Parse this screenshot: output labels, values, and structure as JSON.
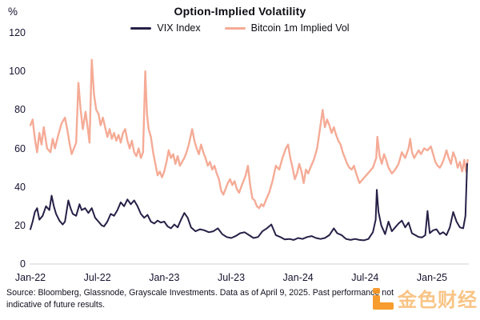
{
  "title": "Option-Implied Volatility",
  "y_axis_unit": "%",
  "legend": [
    {
      "label": "VIX Index",
      "color": "#272047"
    },
    {
      "label": "Bitcoin 1m Implied Vol",
      "color": "#f5ab96"
    }
  ],
  "source": "Source: Bloomberg, Glassnode, Grayscale Investments. Data as of April 9, 2025. Past performance not indicative of future results.",
  "watermark": {
    "text": "金色财经",
    "color": "#f7941d"
  },
  "chart_data": {
    "type": "line",
    "title": "Option-Implied Volatility",
    "x_unit": "months since Jan-2022",
    "y_unit": "percent",
    "ylim": [
      0,
      120
    ],
    "grid": false,
    "legend_position": "top-center",
    "axis_line_color": "#dcdcdc",
    "y_ticks": [
      0,
      20,
      40,
      60,
      80,
      100,
      120
    ],
    "x_ticks": [
      {
        "label": "Jan-22",
        "m": 0
      },
      {
        "label": "Jul-22",
        "m": 6
      },
      {
        "label": "Jan-23",
        "m": 12
      },
      {
        "label": "Jul-23",
        "m": 18
      },
      {
        "label": "Jan-24",
        "m": 24
      },
      {
        "label": "Jul-24",
        "m": 30
      },
      {
        "label": "Jan-25",
        "m": 36
      }
    ],
    "series": [
      {
        "name": "Bitcoin 1m Implied Vol",
        "color": "#f5ab96",
        "stroke_width": 2.4,
        "points": [
          [
            0,
            72
          ],
          [
            0.2,
            75
          ],
          [
            0.4,
            65
          ],
          [
            0.6,
            58
          ],
          [
            0.8,
            68
          ],
          [
            1,
            62
          ],
          [
            1.2,
            71
          ],
          [
            1.5,
            60
          ],
          [
            1.8,
            58
          ],
          [
            2,
            65
          ],
          [
            2.2,
            60
          ],
          [
            2.5,
            67
          ],
          [
            2.8,
            73
          ],
          [
            3.1,
            76
          ],
          [
            3.3,
            70
          ],
          [
            3.5,
            63
          ],
          [
            3.7,
            57
          ],
          [
            3.9,
            60
          ],
          [
            4.1,
            63
          ],
          [
            4.3,
            94
          ],
          [
            4.5,
            80
          ],
          [
            4.7,
            70
          ],
          [
            4.95,
            79
          ],
          [
            5.15,
            70
          ],
          [
            5.3,
            63
          ],
          [
            5.5,
            106
          ],
          [
            5.7,
            88
          ],
          [
            5.9,
            80
          ],
          [
            6.1,
            78
          ],
          [
            6.3,
            72
          ],
          [
            6.5,
            76
          ],
          [
            6.7,
            71
          ],
          [
            6.9,
            66
          ],
          [
            7.1,
            70
          ],
          [
            7.3,
            65
          ],
          [
            7.5,
            68
          ],
          [
            7.7,
            64
          ],
          [
            7.9,
            67
          ],
          [
            8.1,
            63
          ],
          [
            8.3,
            68
          ],
          [
            8.5,
            70
          ],
          [
            8.7,
            64
          ],
          [
            8.9,
            60
          ],
          [
            9.1,
            64
          ],
          [
            9.3,
            58
          ],
          [
            9.5,
            56
          ],
          [
            9.7,
            60
          ],
          [
            9.9,
            55
          ],
          [
            10.1,
            58
          ],
          [
            10.3,
            100
          ],
          [
            10.45,
            78
          ],
          [
            10.6,
            70
          ],
          [
            10.8,
            66
          ],
          [
            11,
            58
          ],
          [
            11.2,
            52
          ],
          [
            11.4,
            46
          ],
          [
            11.6,
            48
          ],
          [
            11.8,
            45
          ],
          [
            12,
            48
          ],
          [
            12.2,
            53
          ],
          [
            12.4,
            59
          ],
          [
            12.6,
            55
          ],
          [
            12.8,
            57
          ],
          [
            13,
            52
          ],
          [
            13.2,
            56
          ],
          [
            13.4,
            51
          ],
          [
            13.6,
            53
          ],
          [
            13.8,
            55
          ],
          [
            14,
            58
          ],
          [
            14.2,
            62
          ],
          [
            14.5,
            70
          ],
          [
            14.7,
            64
          ],
          [
            14.9,
            60
          ],
          [
            15.1,
            57
          ],
          [
            15.3,
            62
          ],
          [
            15.5,
            58
          ],
          [
            15.7,
            55
          ],
          [
            15.9,
            51
          ],
          [
            16.1,
            53
          ],
          [
            16.3,
            49
          ],
          [
            16.5,
            51
          ],
          [
            16.7,
            47
          ],
          [
            16.9,
            44
          ],
          [
            17.1,
            38
          ],
          [
            17.3,
            36
          ],
          [
            17.5,
            39
          ],
          [
            17.7,
            42
          ],
          [
            17.9,
            44
          ],
          [
            18.1,
            41
          ],
          [
            18.3,
            43
          ],
          [
            18.5,
            39
          ],
          [
            18.7,
            37
          ],
          [
            18.9,
            40
          ],
          [
            19.1,
            43
          ],
          [
            19.3,
            46
          ],
          [
            19.5,
            51
          ],
          [
            19.7,
            41
          ],
          [
            19.9,
            34
          ],
          [
            20.1,
            33
          ],
          [
            20.3,
            30
          ],
          [
            20.5,
            29
          ],
          [
            20.7,
            31
          ],
          [
            20.9,
            30
          ],
          [
            21.1,
            33
          ],
          [
            21.4,
            37
          ],
          [
            21.7,
            43
          ],
          [
            22,
            51
          ],
          [
            22.3,
            49
          ],
          [
            22.6,
            55
          ],
          [
            22.9,
            60
          ],
          [
            23.1,
            62
          ],
          [
            23.3,
            55
          ],
          [
            23.5,
            50
          ],
          [
            23.7,
            44
          ],
          [
            23.9,
            47
          ],
          [
            24.1,
            52
          ],
          [
            24.3,
            48
          ],
          [
            24.5,
            42
          ],
          [
            24.7,
            49
          ],
          [
            24.9,
            47
          ],
          [
            25.1,
            50
          ],
          [
            25.4,
            54
          ],
          [
            25.7,
            60
          ],
          [
            26,
            72
          ],
          [
            26.2,
            80
          ],
          [
            26.4,
            71
          ],
          [
            26.6,
            75
          ],
          [
            26.8,
            72
          ],
          [
            27,
            68
          ],
          [
            27.2,
            71
          ],
          [
            27.4,
            67
          ],
          [
            27.6,
            64
          ],
          [
            27.8,
            62
          ],
          [
            28,
            58
          ],
          [
            28.2,
            55
          ],
          [
            28.4,
            52
          ],
          [
            28.6,
            50
          ],
          [
            28.8,
            49
          ],
          [
            29,
            51
          ],
          [
            29.2,
            47
          ],
          [
            29.5,
            42
          ],
          [
            29.8,
            44
          ],
          [
            30.1,
            46
          ],
          [
            30.4,
            48
          ],
          [
            30.7,
            50
          ],
          [
            31,
            55
          ],
          [
            31.1,
            66
          ],
          [
            31.3,
            56
          ],
          [
            31.5,
            52
          ],
          [
            31.7,
            57
          ],
          [
            31.9,
            54
          ],
          [
            32.1,
            50
          ],
          [
            32.4,
            47
          ],
          [
            32.7,
            49
          ],
          [
            33,
            52
          ],
          [
            33.3,
            58
          ],
          [
            33.6,
            55
          ],
          [
            33.9,
            60
          ],
          [
            34.05,
            65
          ],
          [
            34.2,
            58
          ],
          [
            34.4,
            55
          ],
          [
            34.6,
            57
          ],
          [
            34.8,
            59
          ],
          [
            35,
            57
          ],
          [
            35.3,
            60
          ],
          [
            35.6,
            59
          ],
          [
            35.9,
            61
          ],
          [
            36.1,
            57
          ],
          [
            36.3,
            53
          ],
          [
            36.5,
            51
          ],
          [
            36.7,
            50
          ],
          [
            36.9,
            52
          ],
          [
            37.1,
            55
          ],
          [
            37.3,
            59
          ],
          [
            37.5,
            55
          ],
          [
            37.7,
            52
          ],
          [
            37.9,
            58
          ],
          [
            38.1,
            55
          ],
          [
            38.3,
            50
          ],
          [
            38.5,
            53
          ],
          [
            38.7,
            48
          ],
          [
            38.9,
            54
          ],
          [
            39.05,
            48
          ],
          [
            39.2,
            54
          ]
        ]
      },
      {
        "name": "VIX Index",
        "color": "#272047",
        "stroke_width": 2,
        "points": [
          [
            0,
            18
          ],
          [
            0.2,
            22
          ],
          [
            0.4,
            27
          ],
          [
            0.6,
            29
          ],
          [
            0.8,
            23
          ],
          [
            1.1,
            25
          ],
          [
            1.4,
            30
          ],
          [
            1.7,
            28
          ],
          [
            1.9,
            35.5
          ],
          [
            2.1,
            30
          ],
          [
            2.3,
            26
          ],
          [
            2.6,
            22.5
          ],
          [
            2.9,
            20.5
          ],
          [
            3.1,
            22
          ],
          [
            3.4,
            33
          ],
          [
            3.6,
            29
          ],
          [
            3.8,
            26
          ],
          [
            4.1,
            25
          ],
          [
            4.4,
            31
          ],
          [
            4.6,
            28
          ],
          [
            4.9,
            29
          ],
          [
            5.2,
            26.5
          ],
          [
            5.5,
            29
          ],
          [
            5.8,
            24
          ],
          [
            6.1,
            22
          ],
          [
            6.4,
            20
          ],
          [
            6.6,
            19.5
          ],
          [
            6.9,
            22
          ],
          [
            7.2,
            26
          ],
          [
            7.5,
            25
          ],
          [
            7.8,
            28
          ],
          [
            8.1,
            32
          ],
          [
            8.4,
            30
          ],
          [
            8.7,
            33.5
          ],
          [
            9,
            31
          ],
          [
            9.3,
            33
          ],
          [
            9.6,
            30
          ],
          [
            9.9,
            26
          ],
          [
            10.2,
            24
          ],
          [
            10.5,
            25.5
          ],
          [
            10.8,
            22
          ],
          [
            11.1,
            21
          ],
          [
            11.4,
            22.5
          ],
          [
            11.7,
            21.5
          ],
          [
            12,
            22
          ],
          [
            12.3,
            19.5
          ],
          [
            12.6,
            18.5
          ],
          [
            12.9,
            20.5
          ],
          [
            13.2,
            19
          ],
          [
            13.5,
            23
          ],
          [
            13.8,
            26.5
          ],
          [
            14.1,
            24
          ],
          [
            14.4,
            19
          ],
          [
            14.8,
            17
          ],
          [
            15.2,
            18
          ],
          [
            15.6,
            17.5
          ],
          [
            16,
            16.5
          ],
          [
            16.4,
            17
          ],
          [
            16.8,
            18.5
          ],
          [
            17.2,
            15.5
          ],
          [
            17.6,
            14
          ],
          [
            18,
            13.5
          ],
          [
            18.4,
            14.5
          ],
          [
            18.8,
            16
          ],
          [
            19.2,
            16.5
          ],
          [
            19.6,
            15
          ],
          [
            20,
            13.5
          ],
          [
            20.4,
            14
          ],
          [
            20.8,
            17
          ],
          [
            21.2,
            18.5
          ],
          [
            21.6,
            20.5
          ],
          [
            22,
            15
          ],
          [
            22.4,
            14
          ],
          [
            22.8,
            12.8
          ],
          [
            23.2,
            13
          ],
          [
            23.6,
            12.5
          ],
          [
            24,
            13.5
          ],
          [
            24.4,
            13
          ],
          [
            24.8,
            14
          ],
          [
            25.2,
            14.5
          ],
          [
            25.6,
            13.5
          ],
          [
            26,
            13
          ],
          [
            26.4,
            13.5
          ],
          [
            26.8,
            15
          ],
          [
            27.2,
            18.5
          ],
          [
            27.5,
            16
          ],
          [
            27.9,
            15
          ],
          [
            28.3,
            13
          ],
          [
            28.7,
            12.5
          ],
          [
            29.1,
            13
          ],
          [
            29.5,
            12.5
          ],
          [
            29.9,
            12.3
          ],
          [
            30.3,
            13
          ],
          [
            30.7,
            16.5
          ],
          [
            30.95,
            23
          ],
          [
            31.05,
            38.5
          ],
          [
            31.2,
            27
          ],
          [
            31.45,
            20
          ],
          [
            31.8,
            15.5
          ],
          [
            32.1,
            22
          ],
          [
            32.4,
            17
          ],
          [
            32.7,
            19
          ],
          [
            33,
            21
          ],
          [
            33.3,
            22.5
          ],
          [
            33.6,
            19
          ],
          [
            33.9,
            21.5
          ],
          [
            34.2,
            16
          ],
          [
            34.5,
            15
          ],
          [
            34.8,
            14
          ],
          [
            35.1,
            13.8
          ],
          [
            35.4,
            15
          ],
          [
            35.6,
            27.5
          ],
          [
            35.8,
            16
          ],
          [
            36.1,
            17.5
          ],
          [
            36.4,
            18
          ],
          [
            36.7,
            15.5
          ],
          [
            37,
            16.5
          ],
          [
            37.3,
            15
          ],
          [
            37.6,
            19
          ],
          [
            37.9,
            27
          ],
          [
            38.2,
            22
          ],
          [
            38.5,
            19
          ],
          [
            38.8,
            18.5
          ],
          [
            39,
            25
          ],
          [
            39.15,
            52
          ]
        ]
      }
    ]
  }
}
